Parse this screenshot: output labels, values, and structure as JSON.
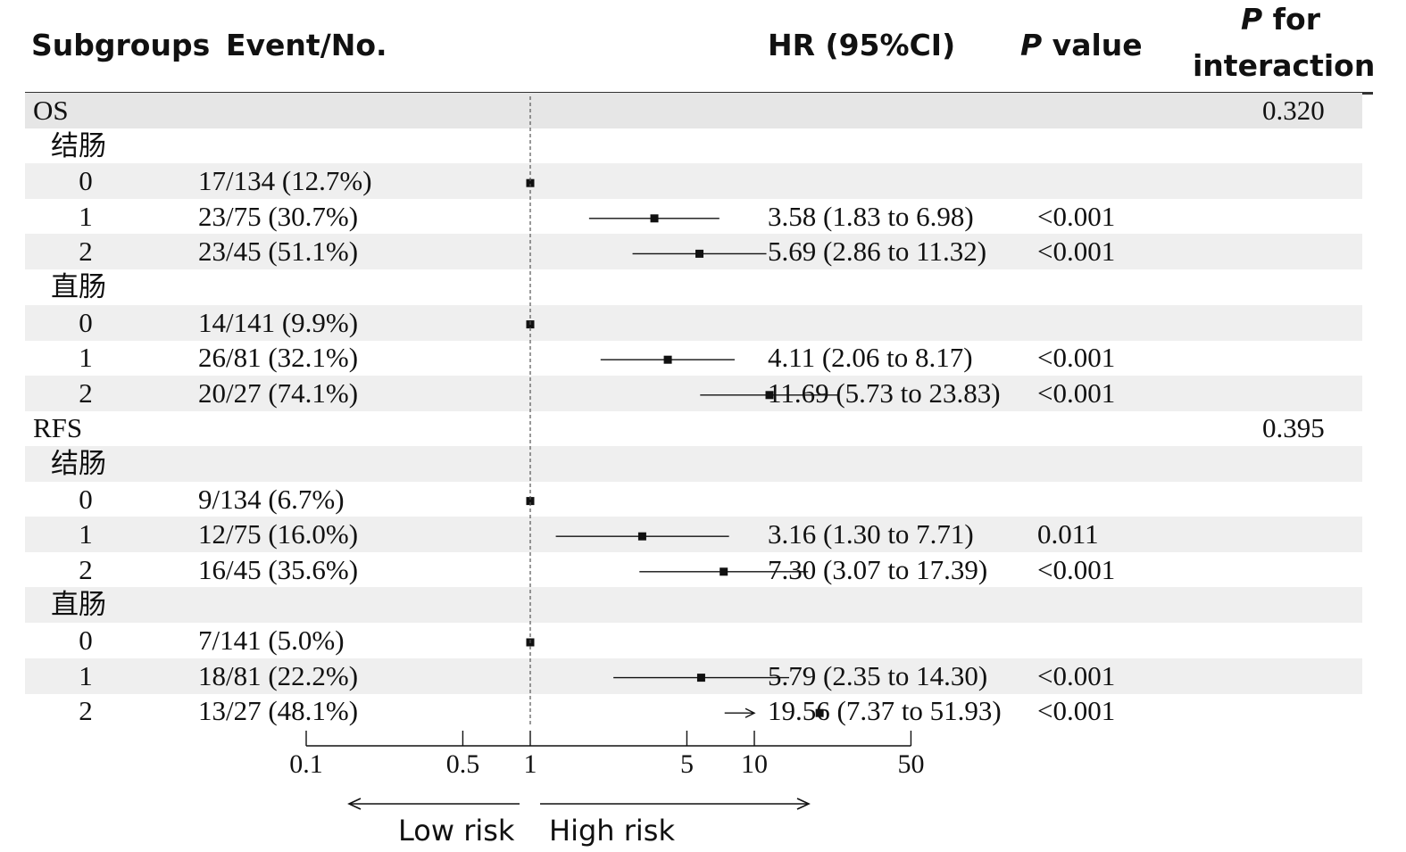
{
  "chart_data": {
    "type": "forest",
    "headers": {
      "subgroups": "Subgroups",
      "events": "Event/No.",
      "hr": "HR (95%CI)",
      "p_italic": "P",
      "p_rest": " value",
      "interaction_italic": "P",
      "interaction_rest_line1": " for",
      "interaction_line2": "interaction"
    },
    "x_axis": {
      "scale": "log",
      "ticks": [
        0.1,
        0.5,
        1,
        5,
        10,
        50
      ],
      "tick_labels": [
        "0.1",
        "0.5",
        "1",
        "5",
        "10",
        "50"
      ],
      "reference": 1
    },
    "risk_labels": {
      "low": "Low risk",
      "high": "High risk"
    },
    "rows": [
      {
        "label": "OS",
        "kind": "section",
        "interaction": "0.320"
      },
      {
        "label": "结肠",
        "kind": "group"
      },
      {
        "label": "0",
        "kind": "level",
        "events": "17/134 (12.7%)",
        "hr": 1
      },
      {
        "label": "1",
        "kind": "level",
        "events": "23/75 (30.7%)",
        "hr": 3.58,
        "lo": 1.83,
        "hi": 6.98,
        "hr_text": "3.58 (1.83 to 6.98)",
        "p": "<0.001"
      },
      {
        "label": "2",
        "kind": "level",
        "events": "23/45 (51.1%)",
        "hr": 5.69,
        "lo": 2.86,
        "hi": 11.32,
        "hr_text": "5.69 (2.86 to 11.32)",
        "p": "<0.001"
      },
      {
        "label": "直肠",
        "kind": "group"
      },
      {
        "label": "0",
        "kind": "level",
        "events": "14/141 (9.9%)",
        "hr": 1
      },
      {
        "label": "1",
        "kind": "level",
        "events": "26/81 (32.1%)",
        "hr": 4.11,
        "lo": 2.06,
        "hi": 8.17,
        "hr_text": "4.11 (2.06 to 8.17)",
        "p": "<0.001"
      },
      {
        "label": "2",
        "kind": "level",
        "events": "20/27 (74.1%)",
        "hr": 11.69,
        "lo": 5.73,
        "hi": 23.83,
        "hr_text": "11.69 (5.73 to 23.83)",
        "p": "<0.001"
      },
      {
        "label": "RFS",
        "kind": "section",
        "interaction": "0.395"
      },
      {
        "label": "结肠",
        "kind": "group"
      },
      {
        "label": "0",
        "kind": "level",
        "events": "9/134 (6.7%)",
        "hr": 1
      },
      {
        "label": "1",
        "kind": "level",
        "events": "12/75 (16.0%)",
        "hr": 3.16,
        "lo": 1.3,
        "hi": 7.71,
        "hr_text": "3.16 (1.30 to 7.71)",
        "p": "0.011"
      },
      {
        "label": "2",
        "kind": "level",
        "events": "16/45 (35.6%)",
        "hr": 7.3,
        "lo": 3.07,
        "hi": 17.39,
        "hr_text": "7.30 (3.07 to 17.39)",
        "p": "<0.001"
      },
      {
        "label": "直肠",
        "kind": "group"
      },
      {
        "label": "0",
        "kind": "level",
        "events": "7/141 (5.0%)",
        "hr": 1
      },
      {
        "label": "1",
        "kind": "level",
        "events": "18/81 (22.2%)",
        "hr": 5.79,
        "lo": 2.35,
        "hi": 14.3,
        "hr_text": "5.79 (2.35 to 14.30)",
        "p": "<0.001"
      },
      {
        "label": "2",
        "kind": "level",
        "events": "13/27 (48.1%)",
        "hr": 19.56,
        "lo": 7.37,
        "hi": 51.93,
        "hr_text": "19.56 (7.37 to 51.93)",
        "p": "<0.001",
        "arrow": true
      }
    ]
  }
}
